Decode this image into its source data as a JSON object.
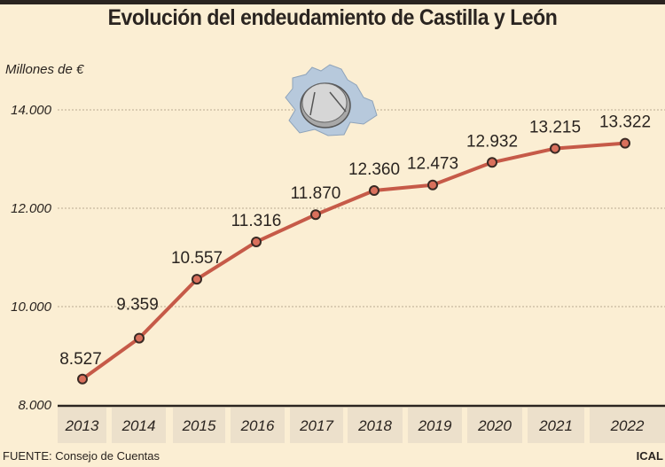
{
  "header": {
    "title": "Evolución del endeudamiento de Castilla y León"
  },
  "footer": {
    "source": "FUENTE: Consejo de Cuentas",
    "credit": "ICAL"
  },
  "colors": {
    "line": "#c65a48",
    "marker_fill": "#d9705c",
    "marker_stroke": "#3a2a24",
    "background": "#fbeed3",
    "year_box": "#ece0cb",
    "map": "#b7c9dc"
  },
  "icons": {
    "map": "castilla-leon-map-with-euro-coin-icon"
  },
  "chart_data": {
    "type": "line",
    "title": "Evolución del endeudamiento de Castilla y León",
    "ylabel": "Millones de €",
    "xlabel": "",
    "categories": [
      "2013",
      "2014",
      "2015",
      "2016",
      "2017",
      "2018",
      "2019",
      "2020",
      "2021",
      "2022"
    ],
    "values": [
      8527,
      9359,
      10557,
      11316,
      11870,
      12360,
      12473,
      12932,
      13215,
      13322
    ],
    "data_labels": [
      "8.527",
      "9.359",
      "10.557",
      "11.316",
      "11.870",
      "12.360",
      "12.473",
      "12.932",
      "13.215",
      "13.322"
    ],
    "ylim": [
      8000,
      14000
    ],
    "yticks": [
      8000,
      10000,
      12000,
      14000
    ],
    "ytick_labels": [
      "8.000",
      "10.000",
      "12.000",
      "14.000"
    ],
    "grid": "horizontal dotted"
  }
}
